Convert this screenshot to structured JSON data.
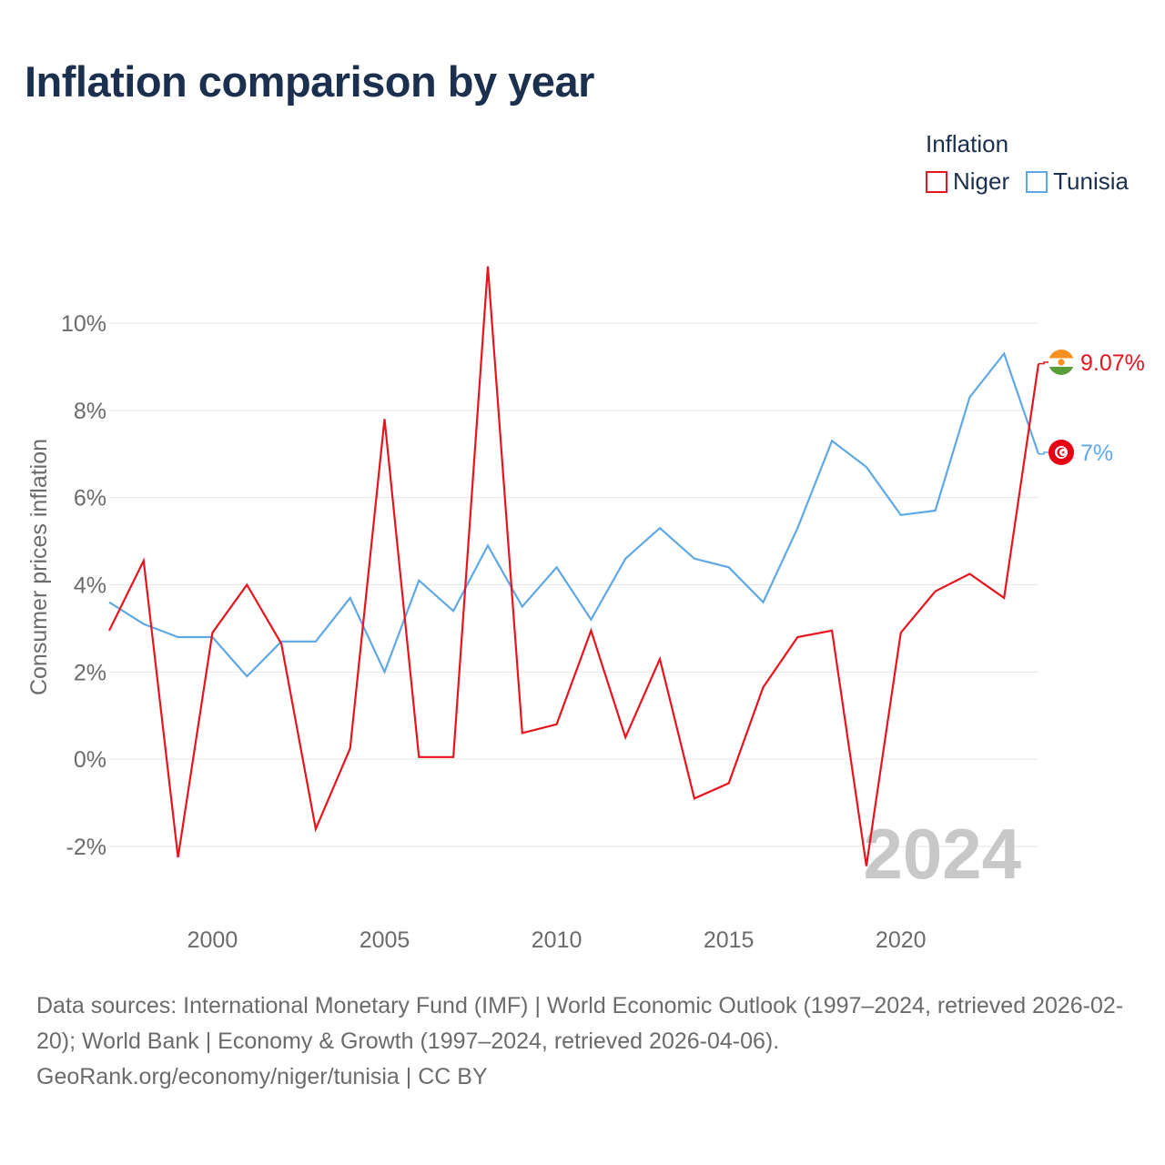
{
  "title": "Inflation comparison by year",
  "legend": {
    "title": "Inflation",
    "items": [
      {
        "label": "Niger",
        "color": "#e8141d"
      },
      {
        "label": "Tunisia",
        "color": "#5fa8e6"
      }
    ]
  },
  "watermark_year": "2024",
  "end_labels": {
    "niger": "9.07%",
    "tunisia": "7%"
  },
  "source": {
    "line1": "Data sources: International Monetary Fund (IMF) | World Economic Outlook (1997–2024, retrieved 2026-02-20); World Bank | Economy & Growth (1997–2024, retrieved 2026-04-06).",
    "line2": "GeoRank.org/economy/niger/tunisia | CC BY"
  },
  "chart_data": {
    "type": "line",
    "title": "Inflation comparison by year",
    "xlabel": "",
    "ylabel": "Consumer prices inflation",
    "xlim": [
      1997,
      2024
    ],
    "ylim": [
      -3.5,
      11.5
    ],
    "x_ticks": [
      2000,
      2005,
      2010,
      2015,
      2020
    ],
    "y_ticks": [
      -2,
      0,
      2,
      4,
      6,
      8,
      10
    ],
    "y_tick_labels": [
      "-2%",
      "0%",
      "2%",
      "4%",
      "6%",
      "8%",
      "10%"
    ],
    "grid": true,
    "legend_position": "top-right",
    "x": [
      1997,
      1998,
      1999,
      2000,
      2001,
      2002,
      2003,
      2004,
      2005,
      2006,
      2007,
      2008,
      2009,
      2010,
      2011,
      2012,
      2013,
      2014,
      2015,
      2016,
      2017,
      2018,
      2019,
      2020,
      2021,
      2022,
      2023,
      2024
    ],
    "series": [
      {
        "name": "Niger",
        "color": "#e8141d",
        "values": [
          2.95,
          4.55,
          -2.25,
          2.9,
          4.0,
          2.65,
          -1.6,
          0.25,
          7.8,
          0.05,
          0.05,
          11.3,
          0.6,
          0.8,
          2.95,
          0.5,
          2.3,
          -0.9,
          -0.55,
          1.65,
          2.8,
          2.95,
          -2.45,
          2.9,
          3.85,
          4.25,
          3.7,
          9.07
        ]
      },
      {
        "name": "Tunisia",
        "color": "#5fa8e6",
        "values": [
          3.6,
          3.1,
          2.8,
          2.8,
          1.9,
          2.7,
          2.7,
          3.7,
          2.0,
          4.1,
          3.4,
          4.9,
          3.5,
          4.4,
          3.2,
          4.6,
          5.3,
          4.6,
          4.4,
          3.6,
          5.3,
          7.3,
          6.7,
          5.6,
          5.7,
          8.3,
          9.3,
          7.0
        ]
      }
    ]
  }
}
